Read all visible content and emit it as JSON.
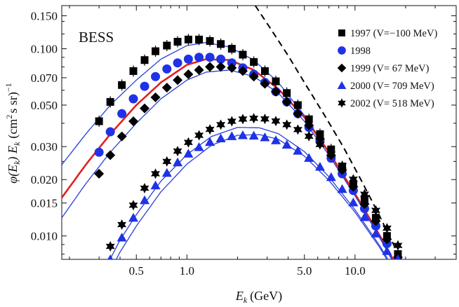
{
  "chart_data": {
    "type": "scatter",
    "title": "",
    "panel_label": "BESS",
    "xlabel": "E",
    "xlabel_sub": "k",
    "xlabel_unit": "(GeV)",
    "ylabel": "φ(E",
    "ylabel_sub": "k",
    "ylabel_mid": ") E",
    "ylabel_unit_pre": "(cm",
    "ylabel_unit_sup": "2",
    "ylabel_unit_post": "s sr)",
    "ylabel_unit_exp": "−1",
    "xscale": "log",
    "yscale": "log",
    "xlim": [
      0.18,
      40
    ],
    "ylim": [
      0.0075,
      0.17
    ],
    "xticks": [
      0.5,
      1.0,
      5.0,
      10.0
    ],
    "xtick_labels": [
      "0.5",
      "1.0",
      "5.0",
      "10.0"
    ],
    "yticks": [
      0.01,
      0.015,
      0.02,
      0.03,
      0.05,
      0.07,
      0.1,
      0.15
    ],
    "ytick_labels": [
      "0.010",
      "0.015",
      "0.020",
      "0.030",
      "0.050",
      "0.070",
      "0.100",
      "0.150"
    ],
    "legend_position": "top-right",
    "series": [
      {
        "name": "1997 (V=−100 MeV)",
        "marker": "square",
        "color": "#000000",
        "x": [
          0.3,
          0.35,
          0.41,
          0.48,
          0.56,
          0.65,
          0.76,
          0.88,
          1.02,
          1.18,
          1.37,
          1.59,
          1.85,
          2.15,
          2.5,
          2.91,
          3.38,
          3.93,
          4.57,
          5.32,
          6.19,
          7.21,
          8.39,
          9.77,
          11.4,
          13.3,
          15.5,
          18.0
        ],
        "values": [
          0.041,
          0.052,
          0.064,
          0.076,
          0.087,
          0.097,
          0.104,
          0.109,
          0.112,
          0.112,
          0.11,
          0.106,
          0.1,
          0.093,
          0.085,
          0.076,
          0.067,
          0.058,
          0.05,
          0.042,
          0.035,
          0.029,
          0.0235,
          0.019,
          0.0155,
          0.0125,
          0.01,
          0.008
        ]
      },
      {
        "name": "1998",
        "marker": "circle",
        "color": "#1f32e6",
        "x": [
          0.3,
          0.35,
          0.41,
          0.48,
          0.56,
          0.65,
          0.76,
          0.88,
          1.02,
          1.18,
          1.37,
          1.59,
          1.85,
          2.15,
          2.5,
          2.91,
          3.38,
          3.93,
          4.57,
          5.32,
          6.19,
          7.21,
          8.39,
          9.77,
          11.4,
          13.3,
          15.5,
          18.0
        ],
        "values": [
          0.028,
          0.036,
          0.045,
          0.054,
          0.063,
          0.071,
          0.078,
          0.084,
          0.088,
          0.09,
          0.09,
          0.088,
          0.084,
          0.079,
          0.073,
          0.066,
          0.059,
          0.052,
          0.045,
          0.038,
          0.032,
          0.026,
          0.0215,
          0.0175,
          0.014,
          0.0113,
          0.0091,
          0.0074
        ]
      },
      {
        "name": "1999 (V= 67 MeV)",
        "marker": "diamond",
        "color": "#000000",
        "x": [
          0.3,
          0.35,
          0.41,
          0.48,
          0.56,
          0.65,
          0.76,
          0.88,
          1.02,
          1.18,
          1.37,
          1.59,
          1.85,
          2.15,
          2.5,
          2.91,
          3.38,
          3.93,
          4.57,
          5.32,
          6.19,
          7.21,
          8.39,
          9.77,
          11.4,
          13.3,
          15.5,
          18.0
        ],
        "values": [
          0.0215,
          0.027,
          0.034,
          0.041,
          0.048,
          0.055,
          0.062,
          0.068,
          0.073,
          0.077,
          0.08,
          0.08,
          0.079,
          0.076,
          0.071,
          0.065,
          0.059,
          0.052,
          0.045,
          0.039,
          0.033,
          0.027,
          0.0225,
          0.0183,
          0.0148,
          0.012,
          0.0096,
          0.0077
        ]
      },
      {
        "name": "2000 (V= 709 MeV)",
        "marker": "triangle",
        "color": "#1f32e6",
        "x": [
          0.35,
          0.41,
          0.48,
          0.56,
          0.65,
          0.76,
          0.88,
          1.02,
          1.18,
          1.37,
          1.59,
          1.85,
          2.15,
          2.5,
          2.91,
          3.38,
          3.93,
          4.57,
          5.32,
          6.19,
          7.21,
          8.39,
          9.77,
          11.4,
          13.3,
          15.5,
          18.0
        ],
        "values": [
          0.0075,
          0.0098,
          0.0125,
          0.0155,
          0.0186,
          0.0217,
          0.0247,
          0.0275,
          0.0298,
          0.0317,
          0.0332,
          0.0341,
          0.0345,
          0.0343,
          0.0336,
          0.0324,
          0.0307,
          0.0285,
          0.0261,
          0.0234,
          0.0206,
          0.0178,
          0.0151,
          0.0126,
          0.0103,
          0.0083,
          0.0075
        ]
      },
      {
        "name": "2002 (V= 518 MeV)",
        "marker": "star",
        "color": "#000000",
        "x": [
          0.35,
          0.41,
          0.48,
          0.56,
          0.65,
          0.76,
          0.88,
          1.02,
          1.18,
          1.37,
          1.59,
          1.85,
          2.15,
          2.5,
          2.91,
          3.38,
          3.93,
          4.57,
          5.32,
          6.19,
          7.21,
          8.39,
          9.77,
          11.4,
          13.3,
          15.5,
          18.0
        ],
        "values": [
          0.0088,
          0.0115,
          0.0146,
          0.018,
          0.0215,
          0.025,
          0.0284,
          0.0316,
          0.0345,
          0.0371,
          0.0393,
          0.041,
          0.0421,
          0.0425,
          0.0422,
          0.0411,
          0.0393,
          0.037,
          0.0341,
          0.0308,
          0.0273,
          0.0237,
          0.0201,
          0.0167,
          0.0137,
          0.011,
          0.0089
        ]
      }
    ],
    "model_curves": [
      {
        "name": "fit 1997",
        "color": "#2a3fd8",
        "x": [
          0.18,
          0.25,
          0.35,
          0.5,
          0.7,
          1.0,
          1.3,
          1.8,
          2.5,
          3.5,
          5.0,
          7.0,
          10.0,
          14.0,
          20.0
        ],
        "values": [
          0.024,
          0.035,
          0.05,
          0.068,
          0.088,
          0.104,
          0.108,
          0.102,
          0.087,
          0.066,
          0.044,
          0.028,
          0.0165,
          0.0098,
          0.0055
        ]
      },
      {
        "name": "fit 1998",
        "color": "#e02020",
        "x": [
          0.18,
          0.25,
          0.35,
          0.5,
          0.7,
          1.0,
          1.3,
          1.8,
          2.5,
          3.5,
          5.0,
          7.0,
          10.0,
          14.0,
          20.0
        ],
        "values": [
          0.016,
          0.024,
          0.035,
          0.05,
          0.066,
          0.082,
          0.088,
          0.087,
          0.077,
          0.061,
          0.043,
          0.028,
          0.0168,
          0.0101,
          0.0057
        ]
      },
      {
        "name": "fit 1999",
        "color": "#2a3fd8",
        "x": [
          0.18,
          0.25,
          0.35,
          0.5,
          0.7,
          1.0,
          1.3,
          1.8,
          2.5,
          3.5,
          5.0,
          7.0,
          10.0,
          14.0,
          20.0
        ],
        "values": [
          0.0125,
          0.019,
          0.028,
          0.04,
          0.054,
          0.068,
          0.075,
          0.077,
          0.071,
          0.058,
          0.041,
          0.027,
          0.0164,
          0.0099,
          0.0056
        ]
      },
      {
        "name": "fit 2002",
        "color": "#2a3fd8",
        "x": [
          0.3,
          0.4,
          0.5,
          0.7,
          1.0,
          1.4,
          2.0,
          2.7,
          3.5,
          5.0,
          7.0,
          10.0,
          14.0,
          20.0
        ],
        "values": [
          0.0058,
          0.0095,
          0.013,
          0.0196,
          0.0272,
          0.034,
          0.038,
          0.0378,
          0.0352,
          0.0282,
          0.0207,
          0.0138,
          0.0089,
          0.0052
        ]
      },
      {
        "name": "fit 2000",
        "color": "#2a3fd8",
        "x": [
          0.3,
          0.4,
          0.5,
          0.7,
          1.0,
          1.4,
          2.0,
          2.7,
          3.5,
          5.0,
          7.0,
          10.0,
          14.0,
          20.0
        ],
        "values": [
          0.005,
          0.0082,
          0.0113,
          0.0172,
          0.0242,
          0.0305,
          0.0345,
          0.0348,
          0.0328,
          0.0267,
          0.0198,
          0.0134,
          0.0087,
          0.0051
        ]
      },
      {
        "name": "interstellar",
        "color": "#000000",
        "dashed": true,
        "x": [
          2.55,
          3.2,
          4.0,
          5.0,
          6.5,
          8.5,
          11.0,
          14.0,
          17.5
        ],
        "values": [
          0.17,
          0.125,
          0.092,
          0.066,
          0.045,
          0.03,
          0.0195,
          0.0128,
          0.0085
        ]
      }
    ]
  }
}
